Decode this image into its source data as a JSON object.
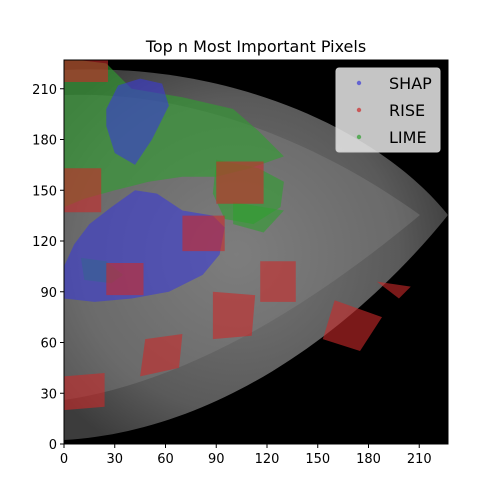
{
  "chart_data": {
    "type": "heatmap",
    "title": "Top n Most Important Pixels",
    "xlabel": "",
    "ylabel": "",
    "xlim": [
      0,
      227
    ],
    "ylim": [
      0,
      227
    ],
    "x_ticks": [
      0,
      30,
      60,
      90,
      120,
      150,
      180,
      210
    ],
    "y_ticks": [
      0,
      30,
      60,
      90,
      120,
      150,
      180,
      210
    ],
    "legend_position": "top-right",
    "series": [
      {
        "name": "SHAP",
        "color": "#3a3ad6",
        "regions": [
          [
            [
              0,
              105
            ],
            [
              6,
              118
            ],
            [
              15,
              130
            ],
            [
              28,
              140
            ],
            [
              42,
              150
            ],
            [
              55,
              148
            ],
            [
              70,
              138
            ],
            [
              88,
              135
            ],
            [
              95,
              128
            ],
            [
              92,
              112
            ],
            [
              82,
              100
            ],
            [
              62,
              90
            ],
            [
              40,
              86
            ],
            [
              18,
              84
            ],
            [
              0,
              86
            ]
          ],
          [
            [
              25,
              198
            ],
            [
              32,
              212
            ],
            [
              45,
              216
            ],
            [
              58,
              213
            ],
            [
              62,
              200
            ],
            [
              52,
              180
            ],
            [
              42,
              165
            ],
            [
              30,
              172
            ],
            [
              25,
              188
            ]
          ]
        ]
      },
      {
        "name": "RISE",
        "color": "#cc2a2a",
        "regions": [
          [
            [
              0,
              228
            ],
            [
              26,
              228
            ],
            [
              26,
              214
            ],
            [
              0,
              214
            ]
          ],
          [
            [
              0,
              163
            ],
            [
              22,
              163
            ],
            [
              22,
              137
            ],
            [
              0,
              137
            ]
          ],
          [
            [
              70,
              135
            ],
            [
              95,
              135
            ],
            [
              95,
              114
            ],
            [
              70,
              114
            ]
          ],
          [
            [
              25,
              107
            ],
            [
              47,
              107
            ],
            [
              47,
              88
            ],
            [
              25,
              88
            ]
          ],
          [
            [
              90,
              167
            ],
            [
              118,
              167
            ],
            [
              118,
              142
            ],
            [
              90,
              142
            ]
          ],
          [
            [
              116,
              108
            ],
            [
              137,
              108
            ],
            [
              137,
              84
            ],
            [
              116,
              84
            ]
          ],
          [
            [
              88,
              90
            ],
            [
              113,
              88
            ],
            [
              111,
              64
            ],
            [
              88,
              62
            ]
          ],
          [
            [
              160,
              85
            ],
            [
              188,
              75
            ],
            [
              175,
              55
            ],
            [
              153,
              62
            ]
          ],
          [
            [
              185,
              96
            ],
            [
              205,
              93
            ],
            [
              198,
              86
            ]
          ],
          [
            [
              48,
              62
            ],
            [
              70,
              65
            ],
            [
              68,
              45
            ],
            [
              45,
              40
            ]
          ],
          [
            [
              0,
              40
            ],
            [
              24,
              42
            ],
            [
              24,
              22
            ],
            [
              0,
              20
            ]
          ]
        ]
      },
      {
        "name": "LIME",
        "color": "#2ea02e",
        "regions": [
          [
            [
              0,
              228
            ],
            [
              25,
              225
            ],
            [
              40,
              210
            ],
            [
              70,
              205
            ],
            [
              100,
              198
            ],
            [
              115,
              185
            ],
            [
              130,
              170
            ],
            [
              110,
              163
            ],
            [
              90,
              158
            ],
            [
              70,
              158
            ],
            [
              50,
              155
            ],
            [
              30,
              150
            ],
            [
              12,
              145
            ],
            [
              0,
              140
            ]
          ],
          [
            [
              90,
              168
            ],
            [
              115,
              163
            ],
            [
              130,
              155
            ],
            [
              128,
              140
            ],
            [
              112,
              130
            ],
            [
              95,
              133
            ],
            [
              88,
              148
            ]
          ],
          [
            [
              100,
              143
            ],
            [
              130,
              138
            ],
            [
              118,
              125
            ],
            [
              100,
              130
            ]
          ],
          [
            [
              10,
              110
            ],
            [
              25,
              108
            ],
            [
              35,
              100
            ],
            [
              28,
              95
            ],
            [
              12,
              97
            ]
          ]
        ]
      }
    ]
  }
}
